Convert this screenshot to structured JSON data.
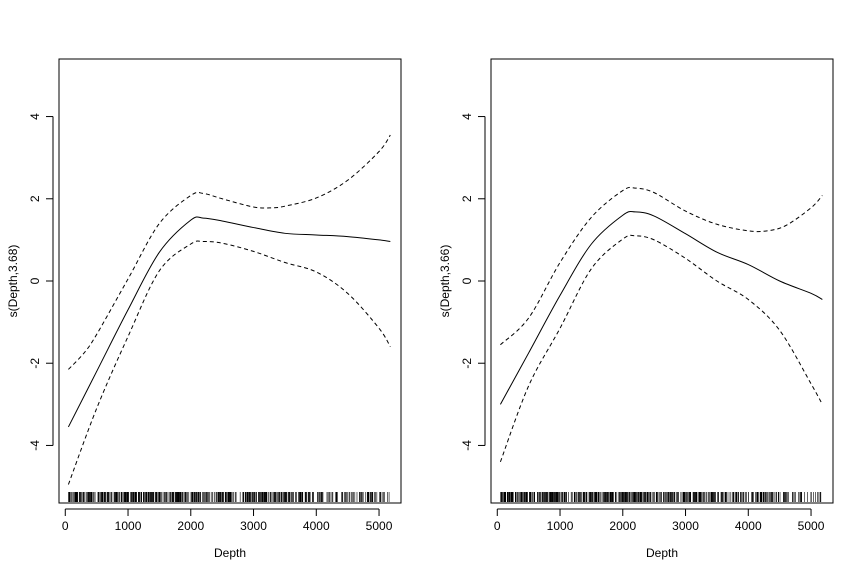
{
  "chart_data": [
    {
      "type": "line",
      "xlabel": "Depth",
      "ylabel": "s(Depth,3.68)",
      "xlim": [
        -100,
        5350
      ],
      "ylim": [
        -5.4,
        5.4
      ],
      "xticks": [
        0,
        1000,
        2000,
        3000,
        4000,
        5000
      ],
      "yticks": [
        -4,
        -2,
        0,
        2,
        4
      ],
      "grid": false,
      "rug": true,
      "series": [
        {
          "role": "fit",
          "style": "solid",
          "x": [
            50,
            500,
            1000,
            1500,
            2000,
            2200,
            2500,
            3000,
            3500,
            4000,
            4500,
            5000,
            5180
          ],
          "y": [
            -3.55,
            -2.2,
            -0.7,
            0.7,
            1.48,
            1.53,
            1.46,
            1.3,
            1.16,
            1.12,
            1.08,
            1.0,
            0.96
          ]
        },
        {
          "role": "upper-ci",
          "style": "dashed",
          "x": [
            50,
            300,
            500,
            1000,
            1500,
            2000,
            2200,
            2500,
            3000,
            3300,
            3500,
            4000,
            4500,
            5000,
            5180
          ],
          "y": [
            -2.15,
            -1.75,
            -1.3,
            0.05,
            1.4,
            2.08,
            2.13,
            2.0,
            1.8,
            1.78,
            1.82,
            2.02,
            2.45,
            3.15,
            3.55
          ]
        },
        {
          "role": "lower-ci",
          "style": "dashed",
          "x": [
            50,
            500,
            1000,
            1500,
            2000,
            2200,
            2500,
            3000,
            3500,
            4000,
            4500,
            5000,
            5180
          ],
          "y": [
            -4.95,
            -3.1,
            -1.35,
            0.25,
            0.9,
            0.96,
            0.92,
            0.72,
            0.45,
            0.22,
            -0.3,
            -1.15,
            -1.6
          ]
        }
      ]
    },
    {
      "type": "line",
      "xlabel": "Depth",
      "ylabel": "s(Depth,3.66)",
      "xlim": [
        -100,
        5350
      ],
      "ylim": [
        -5.4,
        5.4
      ],
      "xticks": [
        0,
        1000,
        2000,
        3000,
        4000,
        5000
      ],
      "yticks": [
        -4,
        -2,
        0,
        2,
        4
      ],
      "grid": false,
      "rug": true,
      "series": [
        {
          "role": "fit",
          "style": "solid",
          "x": [
            50,
            500,
            1000,
            1500,
            2000,
            2200,
            2500,
            3000,
            3500,
            4000,
            4500,
            5000,
            5180
          ],
          "y": [
            -3.0,
            -1.75,
            -0.35,
            0.9,
            1.6,
            1.68,
            1.58,
            1.15,
            0.7,
            0.4,
            0.0,
            -0.3,
            -0.45
          ]
        },
        {
          "role": "upper-ci",
          "style": "dashed",
          "x": [
            50,
            500,
            1000,
            1500,
            2000,
            2200,
            2500,
            3000,
            3500,
            4000,
            4300,
            4600,
            5000,
            5180
          ],
          "y": [
            -1.55,
            -0.9,
            0.45,
            1.55,
            2.2,
            2.26,
            2.15,
            1.7,
            1.38,
            1.22,
            1.22,
            1.35,
            1.78,
            2.08
          ]
        },
        {
          "role": "lower-ci",
          "style": "dashed",
          "x": [
            50,
            500,
            1000,
            1500,
            2000,
            2200,
            2500,
            3000,
            3500,
            4000,
            4500,
            5000,
            5180
          ],
          "y": [
            -4.4,
            -2.55,
            -1.15,
            0.3,
            1.02,
            1.1,
            1.0,
            0.55,
            0.0,
            -0.45,
            -1.2,
            -2.5,
            -3.0
          ]
        }
      ]
    }
  ]
}
